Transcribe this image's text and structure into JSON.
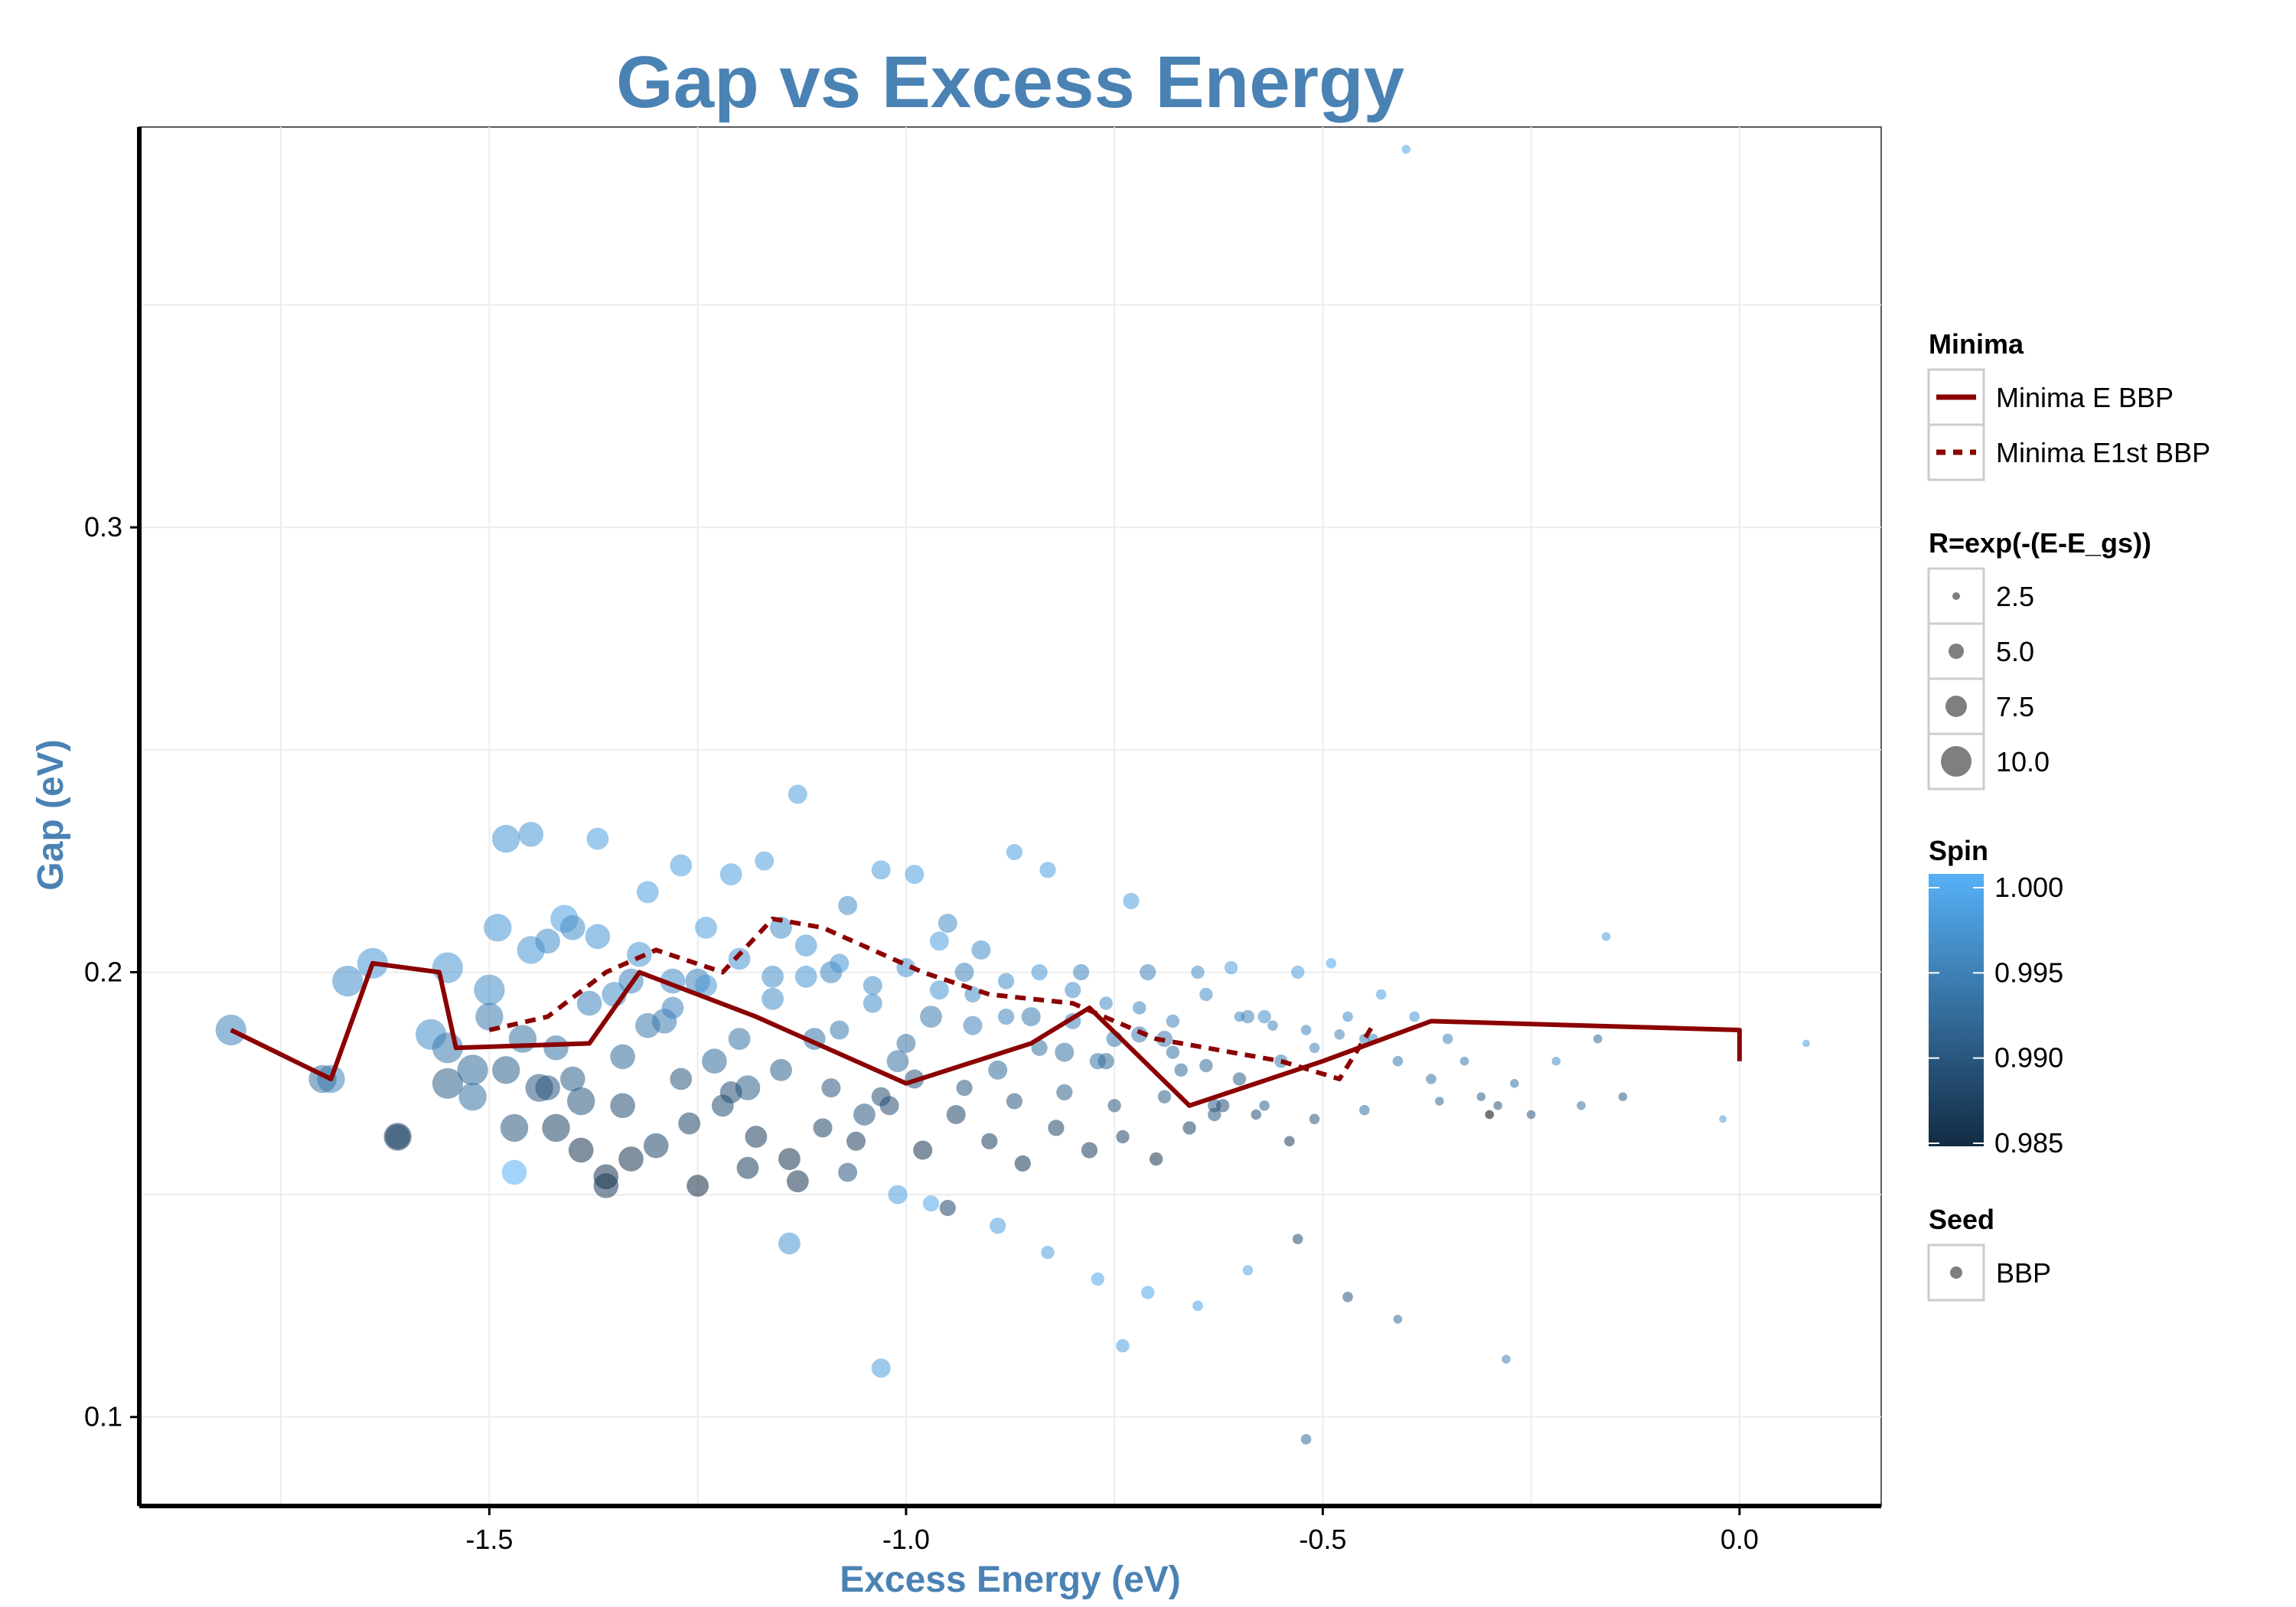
{
  "chart_data": {
    "type": "scatter",
    "title": "Gap vs Excess Energy",
    "xlabel": "Excess Energy (eV)",
    "ylabel": "Gap (eV)",
    "xlim": [
      -1.92,
      0.17
    ],
    "ylim": [
      0.08,
      0.39
    ],
    "x_ticks": [
      -1.5,
      -1.0,
      -0.5,
      0.0
    ],
    "x_tick_labels": [
      "-1.5",
      "-1.0",
      "-0.5",
      "0.0"
    ],
    "y_ticks": [
      0.1,
      0.2,
      0.3
    ],
    "y_tick_labels": [
      "0.1",
      "0.2",
      "0.3"
    ],
    "grid": true,
    "colors": {
      "title": "#4a82b4",
      "line": "#8b0000",
      "spin_low": "#132b43",
      "spin_high": "#56b1f7",
      "grid": "#ececec",
      "size_legend_point": "#7f7f7f"
    },
    "lines": [
      {
        "name": "Minima E BBP",
        "style": "solid",
        "x": [
          -1.81,
          -1.69,
          -1.64,
          -1.56,
          -1.54,
          -1.38,
          -1.32,
          -1.18,
          -1.0,
          -0.85,
          -0.78,
          -0.66,
          -0.5,
          -0.37,
          0.0,
          0.0
        ],
        "y": [
          0.187,
          0.176,
          0.202,
          0.2,
          0.183,
          0.184,
          0.2,
          0.19,
          0.175,
          0.184,
          0.192,
          0.17,
          0.18,
          0.189,
          0.187,
          0.18
        ]
      },
      {
        "name": "Minima E1st BBP",
        "style": "dashed",
        "x": [
          -1.5,
          -1.43,
          -1.36,
          -1.3,
          -1.22,
          -1.16,
          -1.1,
          -0.98,
          -0.9,
          -0.8,
          -0.7,
          -0.55,
          -0.48,
          -0.44
        ],
        "y": [
          0.187,
          0.19,
          0.2,
          0.205,
          0.2,
          0.212,
          0.21,
          0.2,
          0.195,
          0.193,
          0.185,
          0.18,
          0.176,
          0.188
        ]
      }
    ],
    "points": {
      "spin_range": [
        0.985,
        1.0
      ],
      "size_range": [
        1,
        11
      ],
      "x": [
        -1.81,
        -1.69,
        -1.7,
        -1.67,
        -1.64,
        -1.61,
        -1.57,
        -1.55,
        -1.55,
        -1.52,
        -1.5,
        -1.48,
        -1.47,
        -1.45,
        -1.43,
        -1.42,
        -1.4,
        -1.39,
        -1.37,
        -1.36,
        -1.34,
        -1.33,
        -1.31,
        -1.29,
        -1.27,
        -1.25,
        -1.23,
        -1.21,
        -1.19,
        -1.17,
        -1.15,
        -1.13,
        -1.11,
        -1.09,
        -1.07,
        -1.05,
        -1.03,
        -1.01,
        -0.99,
        -0.97,
        -0.95,
        -0.93,
        -0.91,
        -0.89,
        -0.87,
        -0.85,
        -0.83,
        -0.81,
        -0.79,
        -0.77,
        -0.75,
        -0.73,
        -0.71,
        -0.69,
        -0.67,
        -0.65,
        -0.63,
        -0.61,
        -0.59,
        -0.57,
        -0.55,
        -0.53,
        -0.51,
        -0.49,
        -0.47,
        -0.45,
        -0.43,
        -0.41,
        -0.39,
        -0.37,
        -0.35,
        -0.33,
        -0.31,
        -0.29,
        -0.27,
        -0.25,
        -0.22,
        -0.19,
        -0.16,
        -0.14,
        -0.02,
        0.08,
        -0.4,
        -1.61,
        -1.47,
        -1.14,
        -1.03,
        -0.97,
        -0.74,
        -0.52,
        -0.28,
        -0.17,
        -1.5,
        -1.46,
        -1.42,
        -1.38,
        -1.35,
        -1.31,
        -1.28,
        -1.24,
        -1.2,
        -1.16,
        -1.12,
        -1.08,
        -1.04,
        -1.0,
        -0.96,
        -0.92,
        -0.88,
        -0.84,
        -0.8,
        -0.76,
        -0.72,
        -0.68,
        -0.64,
        -0.6,
        -1.43,
        -1.39,
        -1.33,
        -1.26,
        -1.22,
        -1.18,
        -1.14,
        -1.1,
        -1.06,
        -1.02,
        -0.98,
        -0.94,
        -0.9,
        -0.86,
        -0.82,
        -0.78,
        -0.74,
        -0.7,
        -0.66,
        -0.62,
        -0.58,
        -0.54,
        -1.55,
        -1.52,
        -1.49,
        -1.45,
        -1.41,
        -1.37,
        -1.32,
        -1.28,
        -1.24,
        -1.2,
        -1.16,
        -1.12,
        -1.08,
        -1.04,
        -1.0,
        -0.96,
        -0.92,
        -0.88,
        -0.84,
        -0.8,
        -0.76,
        -0.72,
        -0.68,
        -0.64,
        -0.6,
        -0.56,
        -0.52,
        -0.48,
        -0.44,
        -1.36,
        -1.3,
        -1.25,
        -1.19,
        -1.13,
        -1.07,
        -1.01,
        -0.95,
        -0.89,
        -0.83,
        -0.77,
        -0.71,
        -0.65,
        -0.59,
        -0.53,
        -0.47,
        -0.41,
        -1.48,
        -1.44,
        -1.4,
        -1.34,
        -1.27,
        -1.21,
        -1.15,
        -1.09,
        -1.03,
        -0.99,
        -0.93,
        -0.87,
        -0.81,
        -0.75,
        -0.69,
        -0.63,
        -0.57,
        -0.51,
        -0.45,
        -0.36,
        -0.3
      ],
      "y": [
        0.187,
        0.176,
        0.176,
        0.198,
        0.202,
        0.163,
        0.186,
        0.201,
        0.183,
        0.172,
        0.196,
        0.23,
        0.165,
        0.231,
        0.207,
        0.165,
        0.21,
        0.171,
        0.23,
        0.152,
        0.17,
        0.198,
        0.218,
        0.189,
        0.224,
        0.198,
        0.18,
        0.222,
        0.174,
        0.225,
        0.21,
        0.24,
        0.185,
        0.2,
        0.215,
        0.168,
        0.223,
        0.18,
        0.222,
        0.19,
        0.211,
        0.2,
        0.205,
        0.178,
        0.227,
        0.19,
        0.223,
        0.182,
        0.2,
        0.18,
        0.185,
        0.216,
        0.2,
        0.185,
        0.178,
        0.2,
        0.17,
        0.201,
        0.19,
        0.19,
        0.18,
        0.2,
        0.183,
        0.202,
        0.19,
        0.185,
        0.195,
        0.18,
        0.19,
        0.176,
        0.185,
        0.18,
        0.172,
        0.17,
        0.175,
        0.168,
        0.18,
        0.17,
        0.208,
        0.172,
        0.167,
        0.184,
        0.385,
        0.163,
        0.155,
        0.139,
        0.111,
        0.148,
        0.116,
        0.095,
        0.113,
        0.185,
        0.19,
        0.185,
        0.183,
        0.193,
        0.195,
        0.188,
        0.192,
        0.197,
        0.185,
        0.194,
        0.199,
        0.187,
        0.193,
        0.184,
        0.196,
        0.188,
        0.19,
        0.183,
        0.189,
        0.18,
        0.186,
        0.182,
        0.179,
        0.176,
        0.174,
        0.16,
        0.158,
        0.166,
        0.17,
        0.163,
        0.158,
        0.165,
        0.162,
        0.17,
        0.16,
        0.168,
        0.162,
        0.157,
        0.165,
        0.16,
        0.163,
        0.158,
        0.165,
        0.17,
        0.168,
        0.162,
        0.175,
        0.178,
        0.21,
        0.205,
        0.212,
        0.208,
        0.204,
        0.198,
        0.21,
        0.203,
        0.199,
        0.206,
        0.202,
        0.197,
        0.201,
        0.207,
        0.195,
        0.198,
        0.2,
        0.196,
        0.193,
        0.192,
        0.189,
        0.195,
        0.19,
        0.188,
        0.187,
        0.186,
        0.185,
        0.154,
        0.161,
        0.152,
        0.156,
        0.153,
        0.155,
        0.15,
        0.147,
        0.143,
        0.137,
        0.131,
        0.128,
        0.125,
        0.133,
        0.14,
        0.127,
        0.122,
        0.178,
        0.174,
        0.176,
        0.181,
        0.176,
        0.173,
        0.178,
        0.174,
        0.172,
        0.176,
        0.174,
        0.171,
        0.173,
        0.17,
        0.172,
        0.168,
        0.17,
        0.167,
        0.169,
        0.171,
        0.168
      ],
      "size": [
        9,
        8,
        8,
        9,
        9,
        7,
        9,
        9,
        9,
        8,
        9,
        8,
        8,
        7,
        7,
        8,
        7,
        8,
        6,
        7,
        7,
        7,
        6,
        7,
        6,
        7,
        7,
        6,
        7,
        5,
        6,
        5,
        6,
        6,
        5,
        6,
        5,
        6,
        5,
        6,
        5,
        5,
        5,
        5,
        4,
        5,
        4,
        5,
        4,
        4,
        4,
        4,
        4,
        4,
        3,
        3,
        3,
        3,
        3,
        3,
        3,
        3,
        2,
        2,
        2,
        2,
        2,
        2,
        2,
        2,
        2,
        1.5,
        1.5,
        1.5,
        1.5,
        1.5,
        1.5,
        1.5,
        1.5,
        1.5,
        1,
        1,
        1.5,
        8,
        7,
        6,
        5,
        4,
        3,
        2,
        1.5,
        1.5,
        8,
        8,
        7,
        7,
        7,
        7,
        6,
        6,
        6,
        6,
        6,
        5,
        5,
        5,
        5,
        5,
        4,
        4,
        4,
        4,
        4,
        3,
        3,
        3,
        7,
        7,
        7,
        6,
        6,
        6,
        6,
        5,
        5,
        5,
        5,
        5,
        4,
        4,
        4,
        4,
        3,
        3,
        3,
        3,
        2,
        2,
        9,
        9,
        8,
        8,
        8,
        7,
        7,
        7,
        6,
        6,
        6,
        6,
        5,
        5,
        5,
        5,
        4,
        4,
        4,
        4,
        3,
        3,
        3,
        3,
        2,
        2,
        2,
        2,
        2,
        7,
        7,
        6,
        6,
        6,
        5,
        5,
        4,
        4,
        3,
        3,
        3,
        2,
        2,
        2,
        2,
        1.5,
        8,
        8,
        7,
        7,
        6,
        6,
        6,
        5,
        5,
        5,
        4,
        4,
        4,
        3,
        3,
        3,
        2,
        2,
        2,
        1.5,
        1.5
      ],
      "spin": [
        0.995,
        0.995,
        0.993,
        0.996,
        0.997,
        0.988,
        0.996,
        0.997,
        0.994,
        0.993,
        0.996,
        0.997,
        0.99,
        0.997,
        0.996,
        0.988,
        0.996,
        0.99,
        0.998,
        0.987,
        0.989,
        0.995,
        0.998,
        0.994,
        0.998,
        0.995,
        0.992,
        0.998,
        0.991,
        0.998,
        0.996,
        0.998,
        0.993,
        0.995,
        0.996,
        0.99,
        0.998,
        0.993,
        0.998,
        0.994,
        0.996,
        0.995,
        0.996,
        0.992,
        0.998,
        0.994,
        0.998,
        0.993,
        0.995,
        0.993,
        0.994,
        0.998,
        0.995,
        0.994,
        0.992,
        0.996,
        0.991,
        0.998,
        0.995,
        0.996,
        0.994,
        0.998,
        0.995,
        0.999,
        0.996,
        0.995,
        0.998,
        0.994,
        0.997,
        0.993,
        0.995,
        0.994,
        0.991,
        0.99,
        0.993,
        0.99,
        0.996,
        0.993,
        0.998,
        0.991,
        0.998,
        0.998,
        0.999,
        0.988,
        1.0,
        0.997,
        0.998,
        0.999,
        0.998,
        0.992,
        0.995,
        0.992,
        0.994,
        0.993,
        0.993,
        0.995,
        0.996,
        0.994,
        0.995,
        0.997,
        0.993,
        0.996,
        0.997,
        0.994,
        0.996,
        0.993,
        0.997,
        0.995,
        0.995,
        0.993,
        0.995,
        0.992,
        0.994,
        0.993,
        0.992,
        0.991,
        0.99,
        0.986,
        0.986,
        0.988,
        0.989,
        0.987,
        0.986,
        0.988,
        0.987,
        0.989,
        0.986,
        0.988,
        0.987,
        0.986,
        0.988,
        0.987,
        0.988,
        0.986,
        0.988,
        0.989,
        0.989,
        0.987,
        0.991,
        0.992,
        0.997,
        0.997,
        0.998,
        0.997,
        0.997,
        0.996,
        0.998,
        0.997,
        0.996,
        0.997,
        0.997,
        0.996,
        0.997,
        0.998,
        0.996,
        0.996,
        0.997,
        0.996,
        0.996,
        0.995,
        0.995,
        0.996,
        0.995,
        0.995,
        0.995,
        0.995,
        0.995,
        0.986,
        0.988,
        0.985,
        0.987,
        0.986,
        0.99,
        0.998,
        0.988,
        0.998,
        0.998,
        0.999,
        0.999,
        0.998,
        0.999,
        0.989,
        0.99,
        0.992,
        0.991,
        0.99,
        0.991,
        0.992,
        0.99,
        0.989,
        0.991,
        0.99,
        0.989,
        0.99,
        0.99,
        0.99,
        0.991,
        0.99,
        0.991,
        0.99,
        0.991,
        0.99,
        0.993,
        0.992
      ]
    },
    "legends": {
      "minima": {
        "title": "Minima",
        "entries": [
          {
            "label": "Minima E BBP",
            "style": "solid"
          },
          {
            "label": "Minima E1st BBP",
            "style": "dashed"
          }
        ]
      },
      "size": {
        "title": "R=exp(-(E-E_gs))",
        "entries": [
          {
            "label": "2.5",
            "value": 2.5
          },
          {
            "label": "5.0",
            "value": 5.0
          },
          {
            "label": "7.5",
            "value": 7.5
          },
          {
            "label": "10.0",
            "value": 10.0
          }
        ]
      },
      "spin": {
        "title": "Spin",
        "ticks": [
          {
            "label": "1.000",
            "value": 1.0
          },
          {
            "label": "0.995",
            "value": 0.995
          },
          {
            "label": "0.990",
            "value": 0.99
          },
          {
            "label": "0.985",
            "value": 0.985
          }
        ]
      },
      "seed": {
        "title": "Seed",
        "entries": [
          {
            "label": "BBP"
          }
        ]
      },
      "placement": "right"
    }
  }
}
